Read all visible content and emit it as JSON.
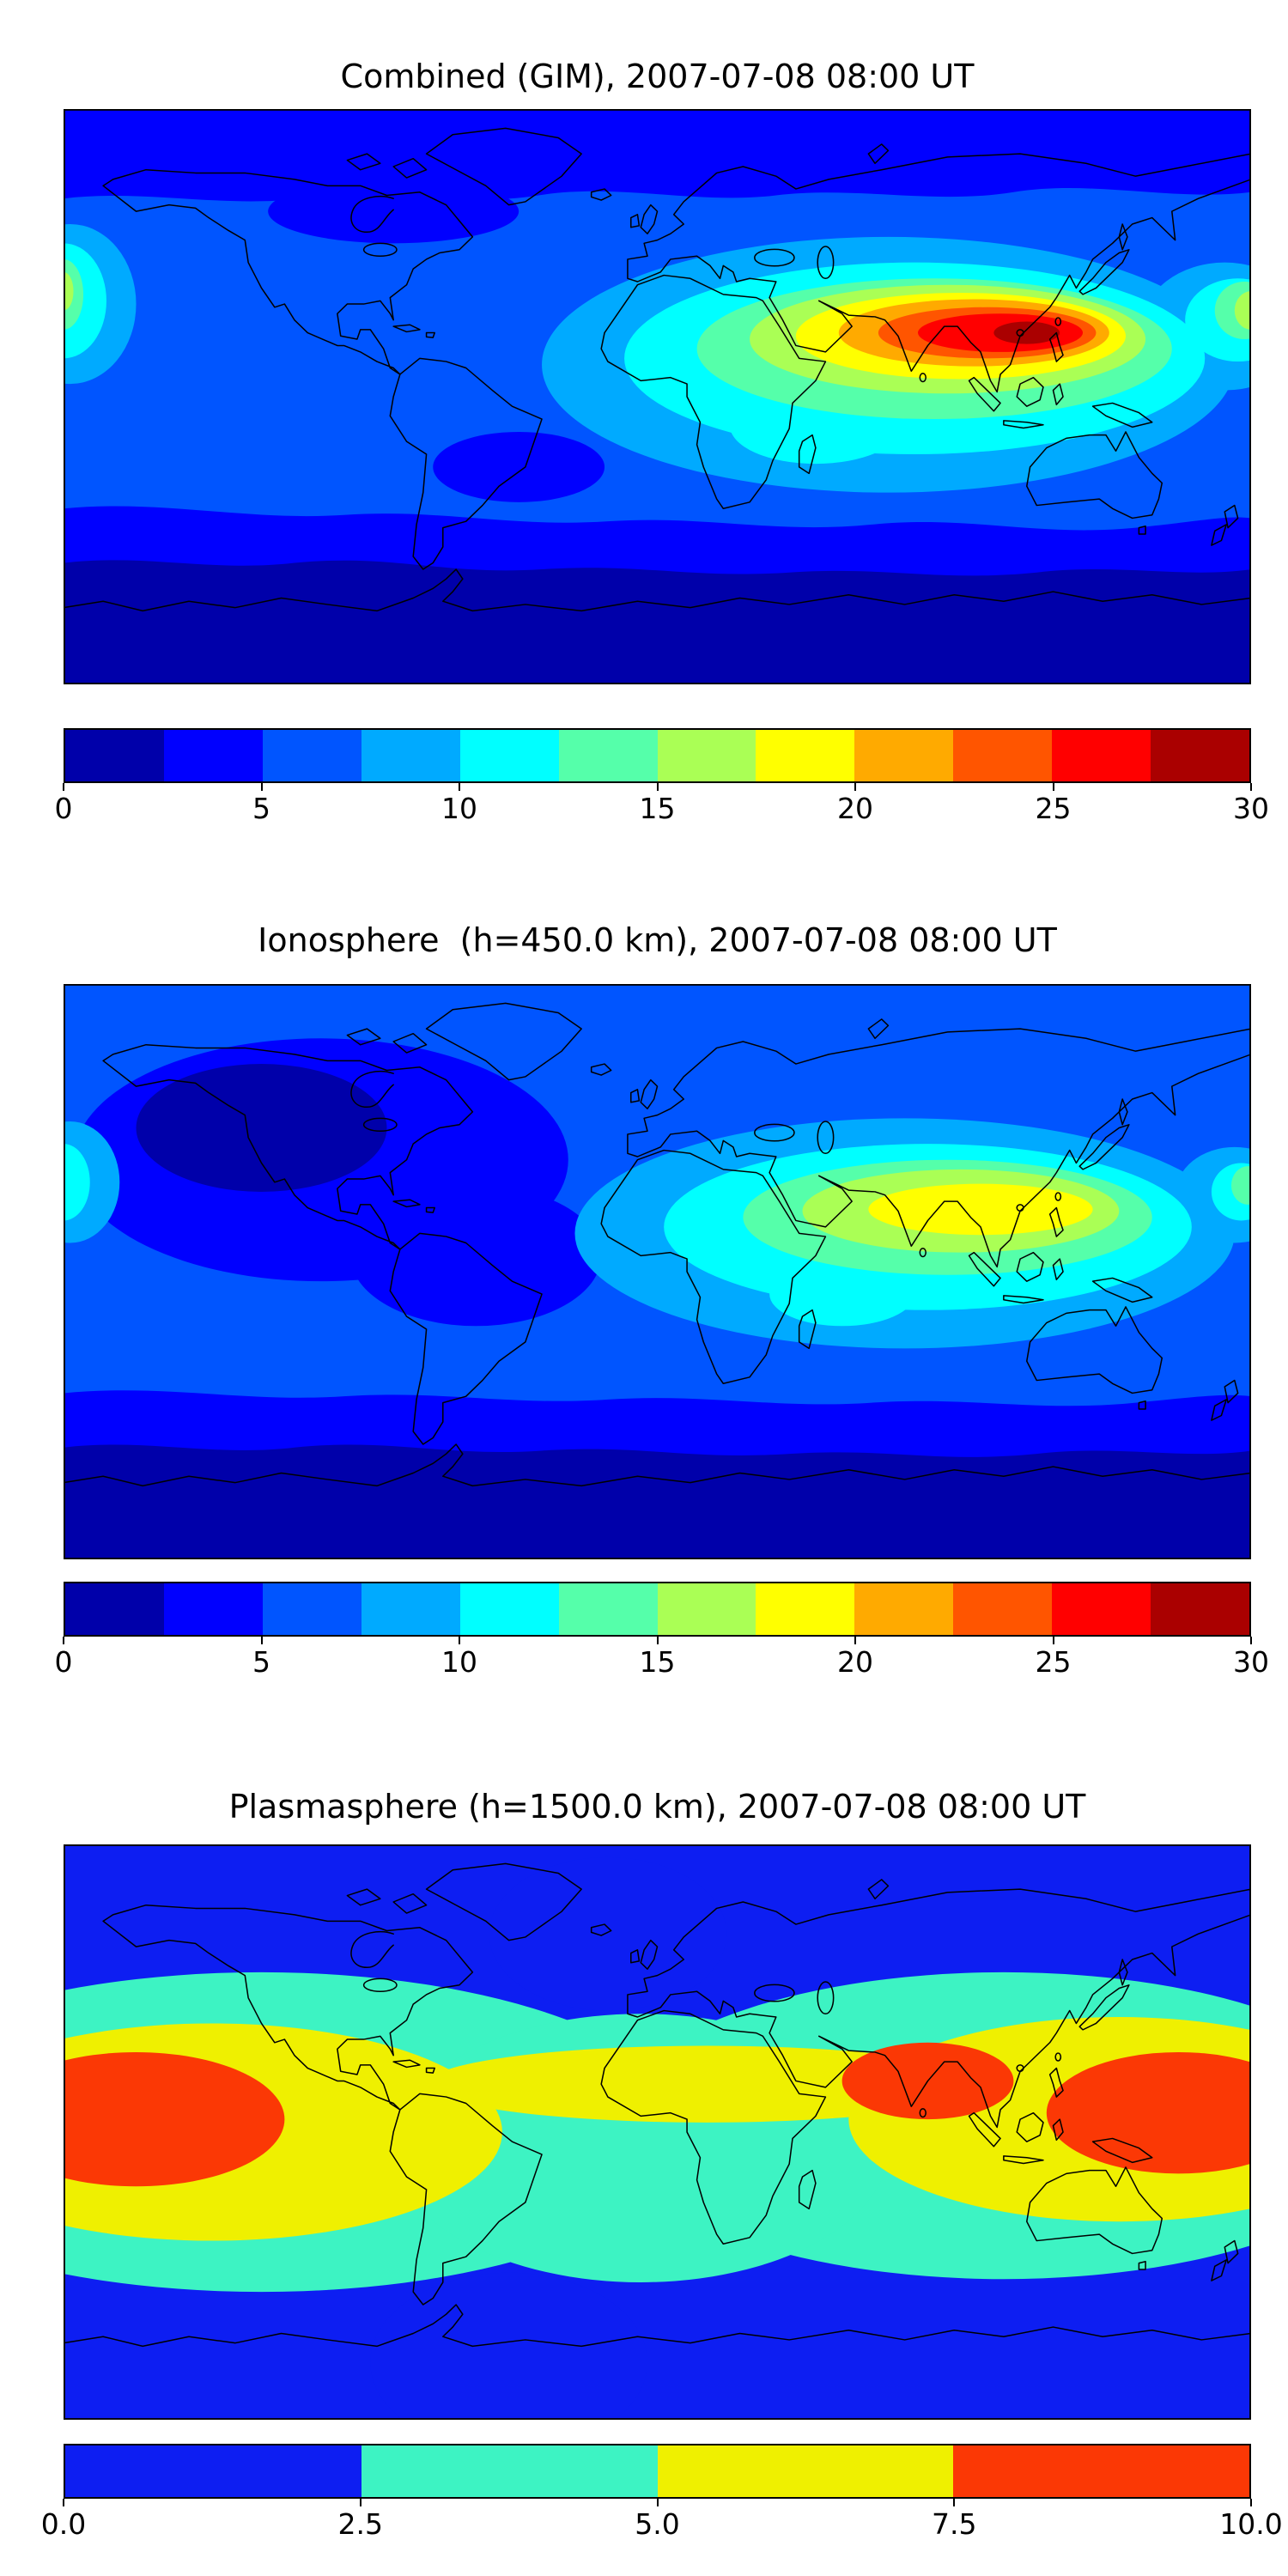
{
  "figure": {
    "background": "#ffffff",
    "font_color": "#000000",
    "panels": [
      {
        "id": "combined",
        "title": "Combined (GIM), 2007-07-08 08:00 UT",
        "colorbar": {
          "orientation": "horizontal",
          "min": 0,
          "max": 30,
          "tick_labels": [
            "0",
            "5",
            "10",
            "15",
            "20",
            "25",
            "30"
          ],
          "segment_colors": [
            "#0000aa",
            "#0000ff",
            "#0055ff",
            "#00aaff",
            "#00ffff",
            "#55ffaa",
            "#aaff55",
            "#ffff00",
            "#ffaa00",
            "#ff5500",
            "#ff0000",
            "#aa0000"
          ]
        }
      },
      {
        "id": "ionosphere",
        "title": "Ionosphere  (h=450.0 km), 2007-07-08 08:00 UT",
        "colorbar": {
          "orientation": "horizontal",
          "min": 0,
          "max": 30,
          "tick_labels": [
            "0",
            "5",
            "10",
            "15",
            "20",
            "25",
            "30"
          ],
          "segment_colors": [
            "#0000aa",
            "#0000ff",
            "#0055ff",
            "#00aaff",
            "#00ffff",
            "#55ffaa",
            "#aaff55",
            "#ffff00",
            "#ffaa00",
            "#ff5500",
            "#ff0000",
            "#aa0000"
          ]
        }
      },
      {
        "id": "plasmasphere",
        "title": "Plasmasphere (h=1500.0 km), 2007-07-08 08:00 UT",
        "colorbar": {
          "orientation": "horizontal",
          "min": 0,
          "max": 10,
          "tick_labels": [
            "0.0",
            "2.5",
            "5.0",
            "7.5",
            "10.0"
          ],
          "segment_colors": [
            "#0d1ef2",
            "#3df3c3",
            "#eff000",
            "#fb3805"
          ]
        }
      }
    ]
  },
  "chart_data": [
    {
      "type": "heatmap",
      "subtype": "filled_contour_world_map",
      "title": "Combined (GIM), 2007-07-08 08:00 UT",
      "timestamp_label": "2007-07-08 08:00 UT",
      "projection": "equirectangular world map with coastlines",
      "lon_range": [
        -180,
        180
      ],
      "lat_range": [
        -90,
        90
      ],
      "value_range": [
        0,
        30
      ],
      "contour_levels": [
        0,
        2.5,
        5,
        7.5,
        10,
        12.5,
        15,
        17.5,
        20,
        22.5,
        25,
        27.5,
        30
      ],
      "colormap": "jet-like, 12 discrete bands",
      "colorbar_tick_labels": [
        "0",
        "5",
        "10",
        "15",
        "20",
        "25",
        "30"
      ],
      "legend_position": "horizontal colorbar below map",
      "features": [
        {
          "label": "primary day-side maximum",
          "approx_lon": 100,
          "approx_lat": 18,
          "approx_value": "27.5-30"
        },
        {
          "label": "broad enhancement over Africa / South Asia / Southeast Asia",
          "approx_lon_span": [
            0,
            180
          ],
          "approx_lat_span": [
            -25,
            45
          ],
          "approx_value": "10-25"
        },
        {
          "label": "secondary enhancement wrapping map edges near dateline",
          "approx_lon": -178,
          "approx_lat": 32,
          "approx_value": "12.5-17.5"
        },
        {
          "label": "night-side low over Americas and Pacific",
          "approx_value": "2.5-7.5"
        },
        {
          "label": "southern high-latitude minimum",
          "approx_lat_span": [
            -90,
            -55
          ],
          "approx_value": "0-2.5"
        }
      ]
    },
    {
      "type": "heatmap",
      "subtype": "filled_contour_world_map",
      "title": "Ionosphere  (h=450.0 km), 2007-07-08 08:00 UT",
      "timestamp_label": "2007-07-08 08:00 UT",
      "projection": "equirectangular world map with coastlines",
      "lon_range": [
        -180,
        180
      ],
      "lat_range": [
        -90,
        90
      ],
      "value_range": [
        0,
        30
      ],
      "contour_levels": [
        0,
        2.5,
        5,
        7.5,
        10,
        12.5,
        15,
        17.5,
        20,
        22.5,
        25,
        27.5,
        30
      ],
      "colormap": "jet-like, 12 discrete bands",
      "colorbar_tick_labels": [
        "0",
        "5",
        "10",
        "15",
        "20",
        "25",
        "30"
      ],
      "legend_position": "horizontal colorbar below map",
      "features": [
        {
          "label": "day-side maximum over India / Southeast Asia",
          "approx_lon": 95,
          "approx_lat": 16,
          "approx_value": "17.5-20"
        },
        {
          "label": "cyan-green enhancement over Africa-Asia sector",
          "approx_lon_span": [
            20,
            170
          ],
          "approx_lat_span": [
            -15,
            40
          ],
          "approx_value": "7.5-15"
        },
        {
          "label": "deep night-side minimum over NE Pacific / North America / Atlantic",
          "approx_lon_span": [
            -175,
            -20
          ],
          "approx_lat_span": [
            -15,
            60
          ],
          "approx_value": "0-5"
        },
        {
          "label": "southern high-latitude minimum",
          "approx_lat_span": [
            -90,
            -55
          ],
          "approx_value": "0-2.5"
        }
      ]
    },
    {
      "type": "heatmap",
      "subtype": "filled_contour_world_map",
      "title": "Plasmasphere (h=1500.0 km), 2007-07-08 08:00 UT",
      "timestamp_label": "2007-07-08 08:00 UT",
      "projection": "equirectangular world map with coastlines",
      "lon_range": [
        -180,
        180
      ],
      "lat_range": [
        -90,
        90
      ],
      "value_range": [
        0,
        10
      ],
      "contour_levels": [
        0,
        2.5,
        5,
        7.5,
        10
      ],
      "colormap": "jet-like, 4 discrete bands (blue, cyan, yellow, red)",
      "colorbar_tick_labels": [
        "0.0",
        "2.5",
        "5.0",
        "7.5",
        "10.0"
      ],
      "legend_position": "horizontal colorbar below map",
      "features": [
        {
          "label": "equatorial maximum near dateline (wraps left edge)",
          "approx_lon": -155,
          "approx_lat": 2,
          "approx_value": "7.5-10"
        },
        {
          "label": "equatorial maximum over India / Bay of Bengal",
          "approx_lon": 82,
          "approx_lat": 16,
          "approx_value": "7.5-10"
        },
        {
          "label": "equatorial maximum over west Pacific (wraps right edge)",
          "approx_lon": 158,
          "approx_lat": 6,
          "approx_value": "7.5-10"
        },
        {
          "label": "yellow equatorial belt",
          "approx_lat_span": [
            -30,
            33
          ],
          "approx_value": "5-7.5"
        },
        {
          "label": "cyan mid-latitude band with dip over South Atlantic",
          "approx_value": "2.5-5"
        },
        {
          "label": "blue high-latitude background",
          "approx_value": "0-2.5"
        }
      ]
    }
  ]
}
